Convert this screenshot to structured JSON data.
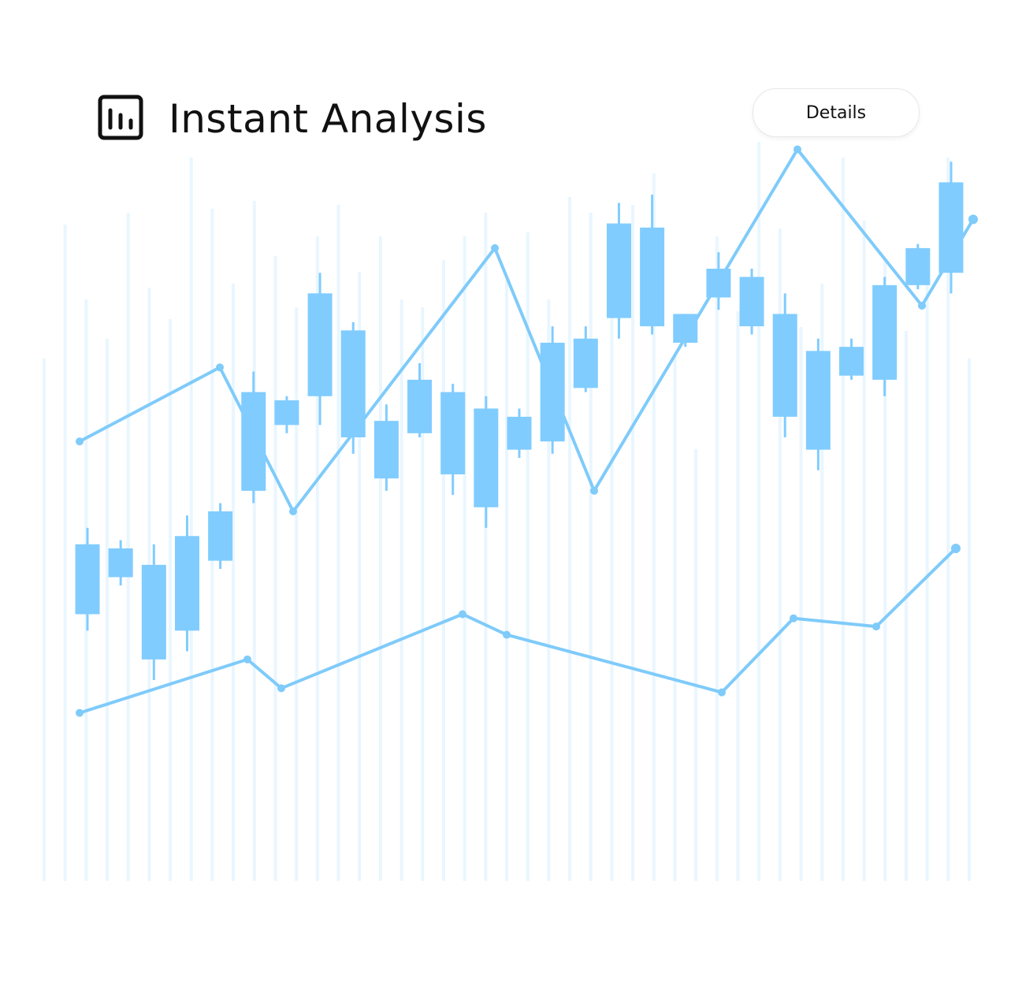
{
  "header": {
    "title": "Instant Analysis",
    "icon": "bar-chart-icon",
    "details_label": "Details"
  },
  "colors": {
    "accent": "#80ccff",
    "line": "#7fcbfa",
    "background_bars": "#e9f6ff",
    "text": "#111111"
  },
  "chart_data": {
    "type": "candlestick",
    "title": "",
    "xlabel": "",
    "ylabel": "",
    "grid": false,
    "ylim": [
      0,
      100
    ],
    "candles": [
      {
        "open": 41.5,
        "close": 33.0,
        "high": 43.5,
        "low": 31.0
      },
      {
        "open": 37.5,
        "close": 41.0,
        "high": 42.0,
        "low": 36.5
      },
      {
        "open": 39.0,
        "close": 27.5,
        "high": 41.5,
        "low": 25.0
      },
      {
        "open": 31.0,
        "close": 42.5,
        "high": 45.0,
        "low": 28.5
      },
      {
        "open": 39.5,
        "close": 45.5,
        "high": 46.5,
        "low": 38.5
      },
      {
        "open": 48.0,
        "close": 60.0,
        "high": 62.5,
        "low": 46.5
      },
      {
        "open": 59.0,
        "close": 56.0,
        "high": 59.5,
        "low": 55.0
      },
      {
        "open": 59.5,
        "close": 72.0,
        "high": 74.5,
        "low": 56.0
      },
      {
        "open": 54.5,
        "close": 67.5,
        "high": 68.5,
        "low": 52.5
      },
      {
        "open": 56.5,
        "close": 49.5,
        "high": 58.5,
        "low": 48.0
      },
      {
        "open": 61.5,
        "close": 55.0,
        "high": 63.5,
        "low": 54.5
      },
      {
        "open": 50.0,
        "close": 60.0,
        "high": 61.0,
        "low": 47.5
      },
      {
        "open": 46.0,
        "close": 58.0,
        "high": 59.5,
        "low": 43.5
      },
      {
        "open": 53.0,
        "close": 57.0,
        "high": 58.0,
        "low": 52.0
      },
      {
        "open": 54.0,
        "close": 66.0,
        "high": 68.0,
        "low": 52.5
      },
      {
        "open": 66.5,
        "close": 60.5,
        "high": 68.0,
        "low": 60.0
      },
      {
        "open": 69.0,
        "close": 80.5,
        "high": 83.0,
        "low": 66.5
      },
      {
        "open": 80.0,
        "close": 68.0,
        "high": 84.0,
        "low": 67.0
      },
      {
        "open": 69.5,
        "close": 66.0,
        "high": 69.5,
        "low": 65.5
      },
      {
        "open": 71.5,
        "close": 75.0,
        "high": 77.0,
        "low": 70.0
      },
      {
        "open": 74.0,
        "close": 68.0,
        "high": 75.0,
        "low": 67.0
      },
      {
        "open": 69.5,
        "close": 57.0,
        "high": 72.0,
        "low": 54.5
      },
      {
        "open": 65.0,
        "close": 53.0,
        "high": 66.5,
        "low": 50.5
      },
      {
        "open": 62.0,
        "close": 65.5,
        "high": 66.5,
        "low": 61.5
      },
      {
        "open": 61.5,
        "close": 73.0,
        "high": 74.0,
        "low": 59.5
      },
      {
        "open": 73.0,
        "close": 77.5,
        "high": 78.0,
        "low": 72.5
      },
      {
        "open": 74.5,
        "close": 85.5,
        "high": 88.0,
        "low": 72.0
      }
    ],
    "series": [
      {
        "points": [
          [
            0,
            54.0
          ],
          [
            1,
            63.0
          ],
          [
            2,
            45.5
          ],
          [
            3,
            77.5
          ],
          [
            4,
            48.0
          ],
          [
            5,
            89.5
          ],
          [
            6,
            70.5
          ],
          [
            7,
            81.0
          ]
        ]
      },
      {
        "points": [
          [
            0,
            21.0
          ],
          [
            1,
            27.5
          ],
          [
            2,
            24.0
          ],
          [
            3,
            33.0
          ],
          [
            4,
            30.5
          ],
          [
            5,
            23.5
          ],
          [
            6,
            32.5
          ],
          [
            7,
            31.5
          ],
          [
            8,
            41.0
          ]
        ]
      }
    ]
  }
}
